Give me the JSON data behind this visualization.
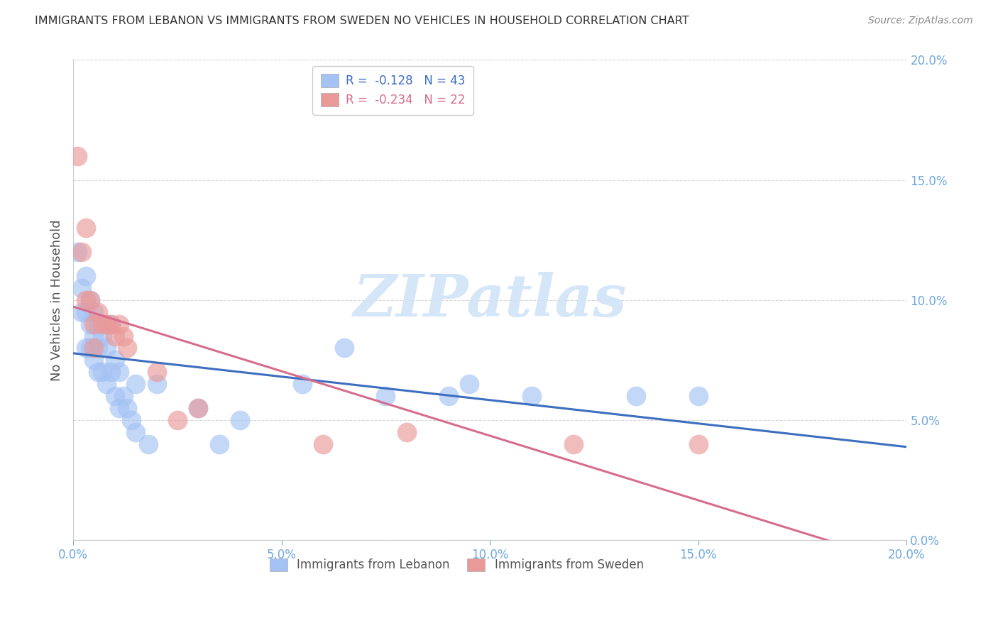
{
  "title": "IMMIGRANTS FROM LEBANON VS IMMIGRANTS FROM SWEDEN NO VEHICLES IN HOUSEHOLD CORRELATION CHART",
  "source": "Source: ZipAtlas.com",
  "ylabel": "No Vehicles in Household",
  "legend_bottom": [
    "Immigrants from Lebanon",
    "Immigrants from Sweden"
  ],
  "xlim": [
    0.0,
    0.2
  ],
  "ylim": [
    0.0,
    0.2
  ],
  "yticks": [
    0.0,
    0.05,
    0.1,
    0.15,
    0.2
  ],
  "xticks": [
    0.0,
    0.05,
    0.1,
    0.15,
    0.2
  ],
  "tick_labels_x": [
    "0.0%",
    "5.0%",
    "10.0%",
    "15.0%",
    "20.0%"
  ],
  "tick_labels_y_right": [
    "0.0%",
    "5.0%",
    "10.0%",
    "15.0%",
    "20.0%"
  ],
  "lebanon_x": [
    0.001,
    0.002,
    0.002,
    0.003,
    0.003,
    0.003,
    0.004,
    0.004,
    0.004,
    0.005,
    0.005,
    0.005,
    0.006,
    0.006,
    0.006,
    0.007,
    0.007,
    0.008,
    0.008,
    0.009,
    0.009,
    0.01,
    0.01,
    0.011,
    0.011,
    0.012,
    0.013,
    0.014,
    0.015,
    0.015,
    0.018,
    0.02,
    0.03,
    0.035,
    0.04,
    0.055,
    0.065,
    0.075,
    0.09,
    0.095,
    0.11,
    0.135,
    0.15
  ],
  "lebanon_y": [
    0.12,
    0.105,
    0.095,
    0.11,
    0.095,
    0.08,
    0.1,
    0.09,
    0.08,
    0.095,
    0.085,
    0.075,
    0.09,
    0.08,
    0.07,
    0.085,
    0.07,
    0.08,
    0.065,
    0.09,
    0.07,
    0.075,
    0.06,
    0.07,
    0.055,
    0.06,
    0.055,
    0.05,
    0.065,
    0.045,
    0.04,
    0.065,
    0.055,
    0.04,
    0.05,
    0.065,
    0.08,
    0.06,
    0.06,
    0.065,
    0.06,
    0.06,
    0.06
  ],
  "sweden_x": [
    0.001,
    0.002,
    0.003,
    0.003,
    0.004,
    0.005,
    0.005,
    0.006,
    0.007,
    0.008,
    0.009,
    0.01,
    0.011,
    0.012,
    0.013,
    0.02,
    0.025,
    0.03,
    0.06,
    0.08,
    0.12,
    0.15
  ],
  "sweden_y": [
    0.16,
    0.12,
    0.13,
    0.1,
    0.1,
    0.09,
    0.08,
    0.095,
    0.09,
    0.09,
    0.09,
    0.085,
    0.09,
    0.085,
    0.08,
    0.07,
    0.05,
    0.055,
    0.04,
    0.045,
    0.04,
    0.04
  ],
  "color_lebanon": "#a4c2f4",
  "color_sweden": "#ea9999",
  "color_lebanon_line": "#3d6ebf",
  "color_sweden_line": "#d86c8c",
  "watermark_text": "ZIPatlas",
  "watermark_color": "#d0e4f7",
  "background_color": "#ffffff",
  "grid_color": "#cccccc",
  "tick_color": "#6fa8dc",
  "ylabel_color": "#555555",
  "title_color": "#333333",
  "source_color": "#888888",
  "legend_r_leb": "R =  -0.128",
  "legend_n_leb": "N = 43",
  "legend_r_swe": "R =  -0.234",
  "legend_n_swe": "N = 22"
}
